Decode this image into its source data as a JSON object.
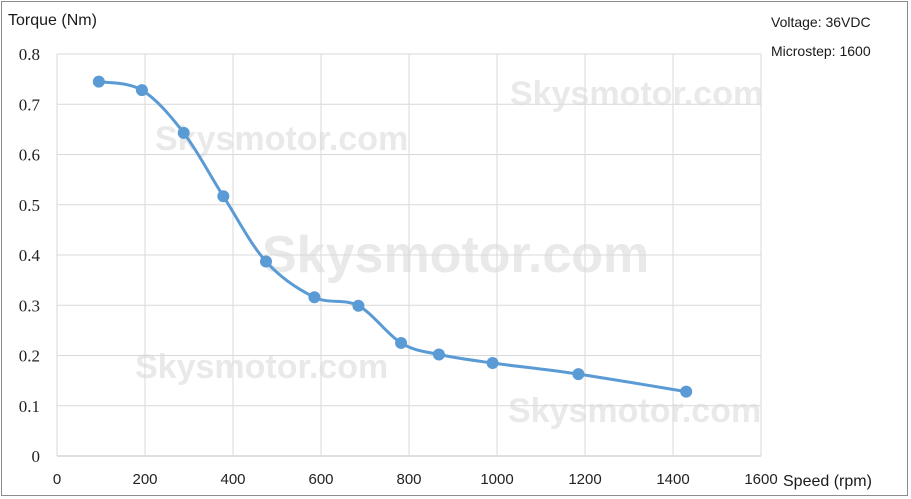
{
  "chart_data": {
    "type": "line",
    "ylabel": "Torque (Nm)",
    "xlabel": "Speed (rpm)",
    "annotations": [
      "Voltage: 36VDC",
      "Microstep: 1600"
    ],
    "watermark": "Skysmotor.com",
    "xlim": [
      0,
      1600
    ],
    "ylim": [
      0,
      0.8
    ],
    "x_ticks": [
      "0",
      "200",
      "400",
      "600",
      "800",
      "1000",
      "1200",
      "1400",
      "1600"
    ],
    "y_ticks": [
      "0",
      "0.1",
      "0.2",
      "0.3",
      "0.4",
      "0.5",
      "0.6",
      "0.7",
      "0.8"
    ],
    "grid": true,
    "smooth": true,
    "series": [
      {
        "color": "#5b9bd5",
        "x": [
          95,
          193,
          288,
          378,
          475,
          585,
          685,
          782,
          868,
          990,
          1185,
          1430
        ],
        "y": [
          0.745,
          0.728,
          0.643,
          0.517,
          0.387,
          0.316,
          0.299,
          0.225,
          0.202,
          0.185,
          0.163,
          0.128
        ]
      }
    ]
  }
}
